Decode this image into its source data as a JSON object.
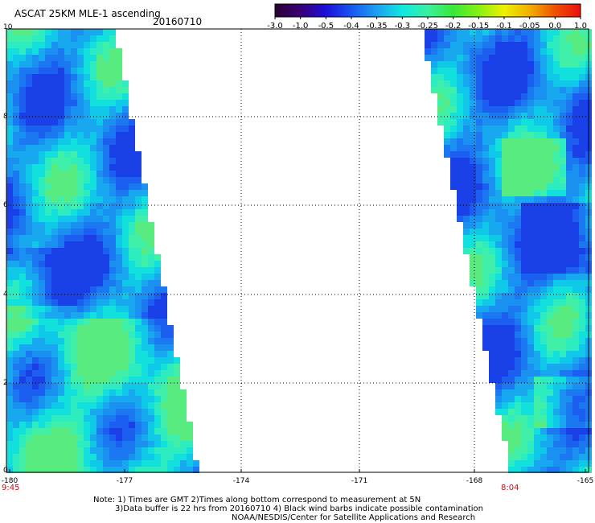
{
  "header": {
    "title": "ASCAT 25KM MLE-1 ascending",
    "date": "20160710"
  },
  "colorbar": {
    "labels": [
      "-3.0",
      "-1.0",
      "-0.5",
      "-0.4",
      "-0.35",
      "-0.3",
      "-0.25",
      "-0.2",
      "-0.15",
      "-0.1",
      "-0.05",
      "0.0",
      "1.0"
    ],
    "colors": [
      "#2a0030",
      "#3a0078",
      "#1a10d8",
      "#1858f0",
      "#1ca0f0",
      "#10e8e0",
      "#38f0a0",
      "#38e838",
      "#88f010",
      "#f0f000",
      "#f0b000",
      "#f05000",
      "#e81010"
    ]
  },
  "axes": {
    "y_ticks": [
      "10",
      "8",
      "6",
      "4",
      "2",
      "0"
    ],
    "x_ticks": [
      "-180",
      "-177",
      "-174",
      "-171",
      "-168",
      "-165"
    ]
  },
  "times": {
    "left": "9:45",
    "right": "8:04"
  },
  "notes": {
    "line1": "Note: 1) Times are GMT 2)Times along bottom correspond to measurement at 5N",
    "line2": "3)Data buffer is 22 hrs from 20160710 4) Black wind barbs indicate possible contamination",
    "line3": "NOAA/NESDIS/Center for Satellite Applications and Research"
  }
}
